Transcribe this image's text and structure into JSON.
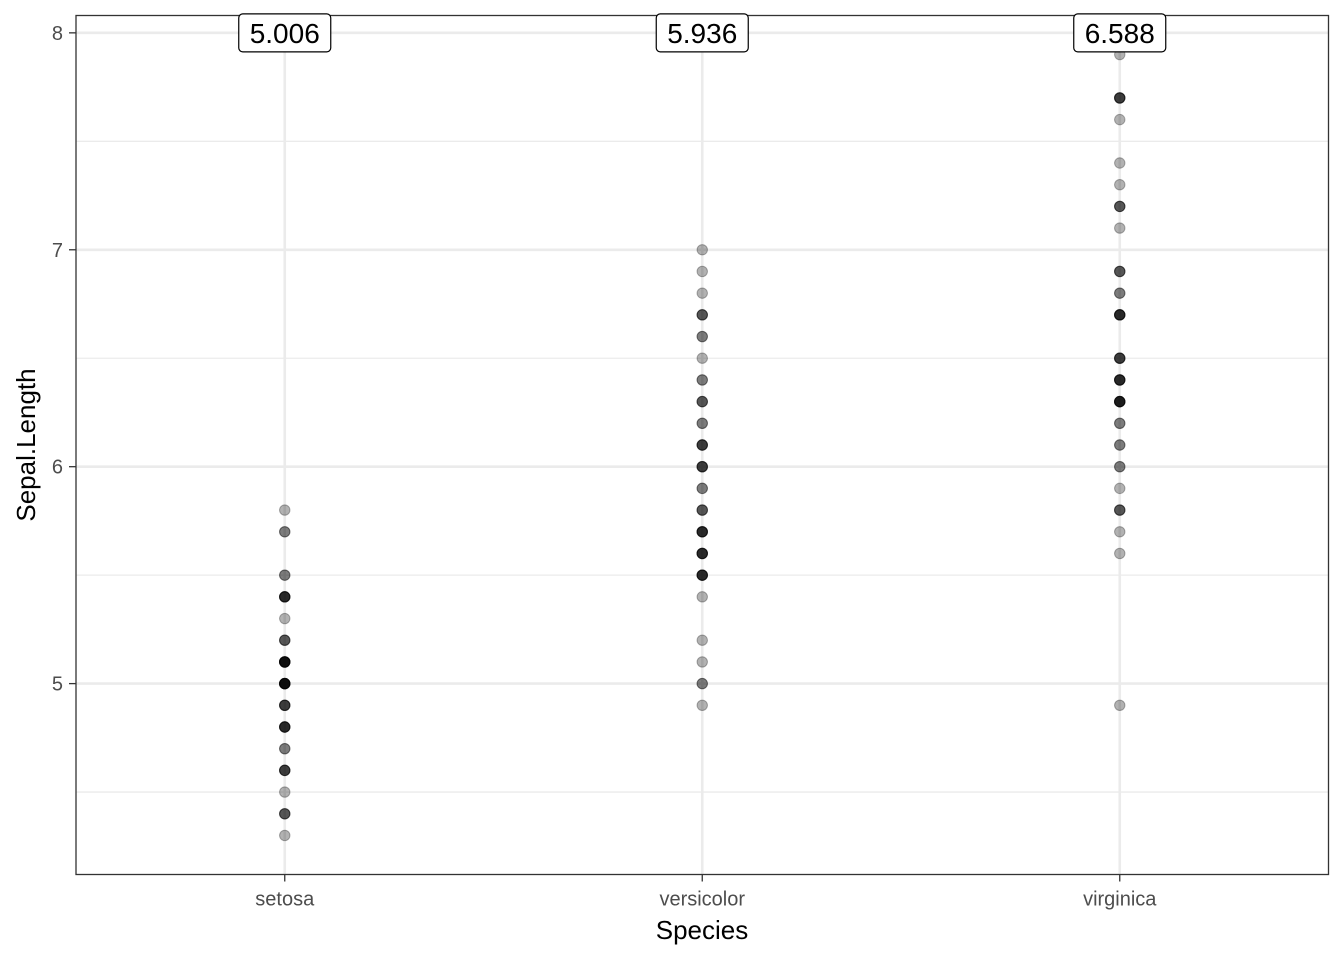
{
  "chart_data": {
    "type": "scatter",
    "title": "",
    "xlabel": "Species",
    "ylabel": "Sepal.Length",
    "categories": [
      "setosa",
      "versicolor",
      "virginica"
    ],
    "y_ticks": [
      "5",
      "6",
      "7",
      "8"
    ],
    "y_tick_values": [
      5,
      6,
      7,
      8
    ],
    "ylim": [
      4.12,
      8.08
    ],
    "grid": true,
    "legend": "none",
    "point_color": "#000000",
    "point_alpha": 0.3,
    "series": [
      {
        "category": "setosa",
        "points": [
          {
            "y": 4.3,
            "n": 1
          },
          {
            "y": 4.4,
            "n": 3
          },
          {
            "y": 4.5,
            "n": 1
          },
          {
            "y": 4.6,
            "n": 4
          },
          {
            "y": 4.7,
            "n": 2
          },
          {
            "y": 4.8,
            "n": 5
          },
          {
            "y": 4.9,
            "n": 4
          },
          {
            "y": 5.0,
            "n": 8
          },
          {
            "y": 5.1,
            "n": 8
          },
          {
            "y": 5.2,
            "n": 3
          },
          {
            "y": 5.3,
            "n": 1
          },
          {
            "y": 5.4,
            "n": 5
          },
          {
            "y": 5.5,
            "n": 2
          },
          {
            "y": 5.7,
            "n": 2
          },
          {
            "y": 5.8,
            "n": 1
          }
        ]
      },
      {
        "category": "versicolor",
        "points": [
          {
            "y": 4.9,
            "n": 1
          },
          {
            "y": 5.0,
            "n": 2
          },
          {
            "y": 5.1,
            "n": 1
          },
          {
            "y": 5.2,
            "n": 1
          },
          {
            "y": 5.4,
            "n": 1
          },
          {
            "y": 5.5,
            "n": 5
          },
          {
            "y": 5.6,
            "n": 5
          },
          {
            "y": 5.7,
            "n": 5
          },
          {
            "y": 5.8,
            "n": 3
          },
          {
            "y": 5.9,
            "n": 2
          },
          {
            "y": 6.0,
            "n": 4
          },
          {
            "y": 6.1,
            "n": 4
          },
          {
            "y": 6.2,
            "n": 2
          },
          {
            "y": 6.3,
            "n": 3
          },
          {
            "y": 6.4,
            "n": 2
          },
          {
            "y": 6.5,
            "n": 1
          },
          {
            "y": 6.6,
            "n": 2
          },
          {
            "y": 6.7,
            "n": 3
          },
          {
            "y": 6.8,
            "n": 1
          },
          {
            "y": 6.9,
            "n": 1
          },
          {
            "y": 7.0,
            "n": 1
          }
        ]
      },
      {
        "category": "virginica",
        "points": [
          {
            "y": 4.9,
            "n": 1
          },
          {
            "y": 5.6,
            "n": 1
          },
          {
            "y": 5.7,
            "n": 1
          },
          {
            "y": 5.8,
            "n": 3
          },
          {
            "y": 5.9,
            "n": 1
          },
          {
            "y": 6.0,
            "n": 2
          },
          {
            "y": 6.1,
            "n": 2
          },
          {
            "y": 6.2,
            "n": 2
          },
          {
            "y": 6.3,
            "n": 6
          },
          {
            "y": 6.4,
            "n": 5
          },
          {
            "y": 6.5,
            "n": 4
          },
          {
            "y": 6.7,
            "n": 5
          },
          {
            "y": 6.8,
            "n": 2
          },
          {
            "y": 6.9,
            "n": 3
          },
          {
            "y": 7.1,
            "n": 1
          },
          {
            "y": 7.2,
            "n": 3
          },
          {
            "y": 7.3,
            "n": 1
          },
          {
            "y": 7.4,
            "n": 1
          },
          {
            "y": 7.6,
            "n": 1
          },
          {
            "y": 7.7,
            "n": 4
          },
          {
            "y": 7.9,
            "n": 1
          }
        ]
      }
    ],
    "annotations": [
      {
        "category": "setosa",
        "y": 8,
        "text": "5.006"
      },
      {
        "category": "versicolor",
        "y": 8,
        "text": "5.936"
      },
      {
        "category": "virginica",
        "y": 8,
        "text": "6.588"
      }
    ]
  }
}
